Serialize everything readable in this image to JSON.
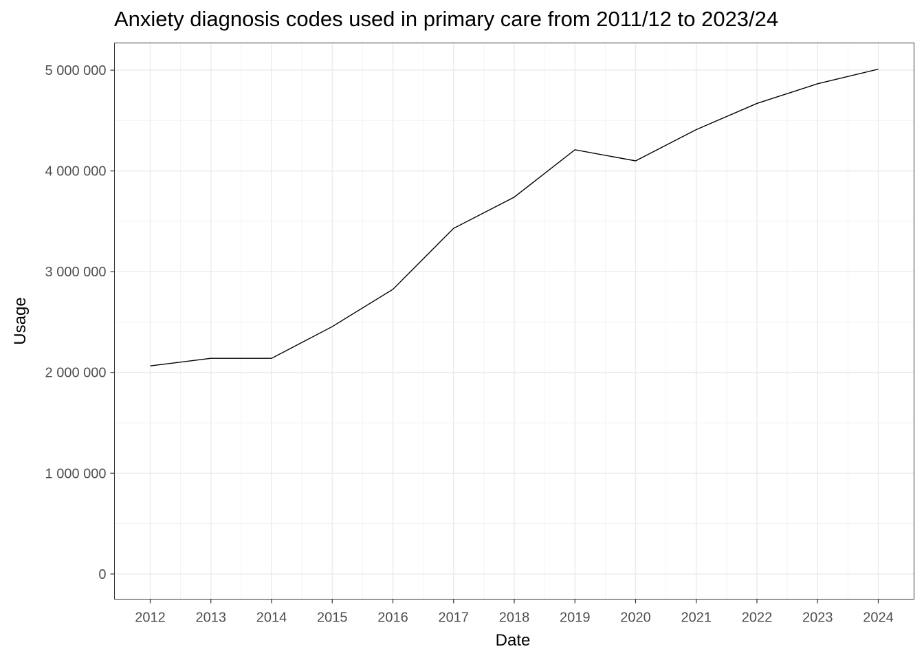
{
  "chart_data": {
    "type": "line",
    "title": "Anxiety diagnosis codes used in primary care from 2011/12 to 2023/24",
    "xlabel": "Date",
    "ylabel": "Usage",
    "x_ticks": [
      "2012",
      "2013",
      "2014",
      "2015",
      "2016",
      "2017",
      "2018",
      "2019",
      "2020",
      "2021",
      "2022",
      "2023",
      "2024"
    ],
    "y_ticks": [
      "0",
      "1 000 000",
      "2 000 000",
      "3 000 000",
      "4 000 000",
      "5 000 000"
    ],
    "x": [
      "2012",
      "2013",
      "2014",
      "2015",
      "2016",
      "2017",
      "2018",
      "2019",
      "2020",
      "2021",
      "2022",
      "2023",
      "2024"
    ],
    "series": [
      {
        "values": [
          2065000,
          2140000,
          2140000,
          2455000,
          2825000,
          3430000,
          3740000,
          4210000,
          4100000,
          4410000,
          4670000,
          4865000,
          5010000
        ],
        "color": "#000000"
      }
    ],
    "xlim": [
      "2011-05",
      "2024-08"
    ],
    "ylim": [
      -250000,
      5270000
    ],
    "grid": true,
    "legend": "none"
  }
}
